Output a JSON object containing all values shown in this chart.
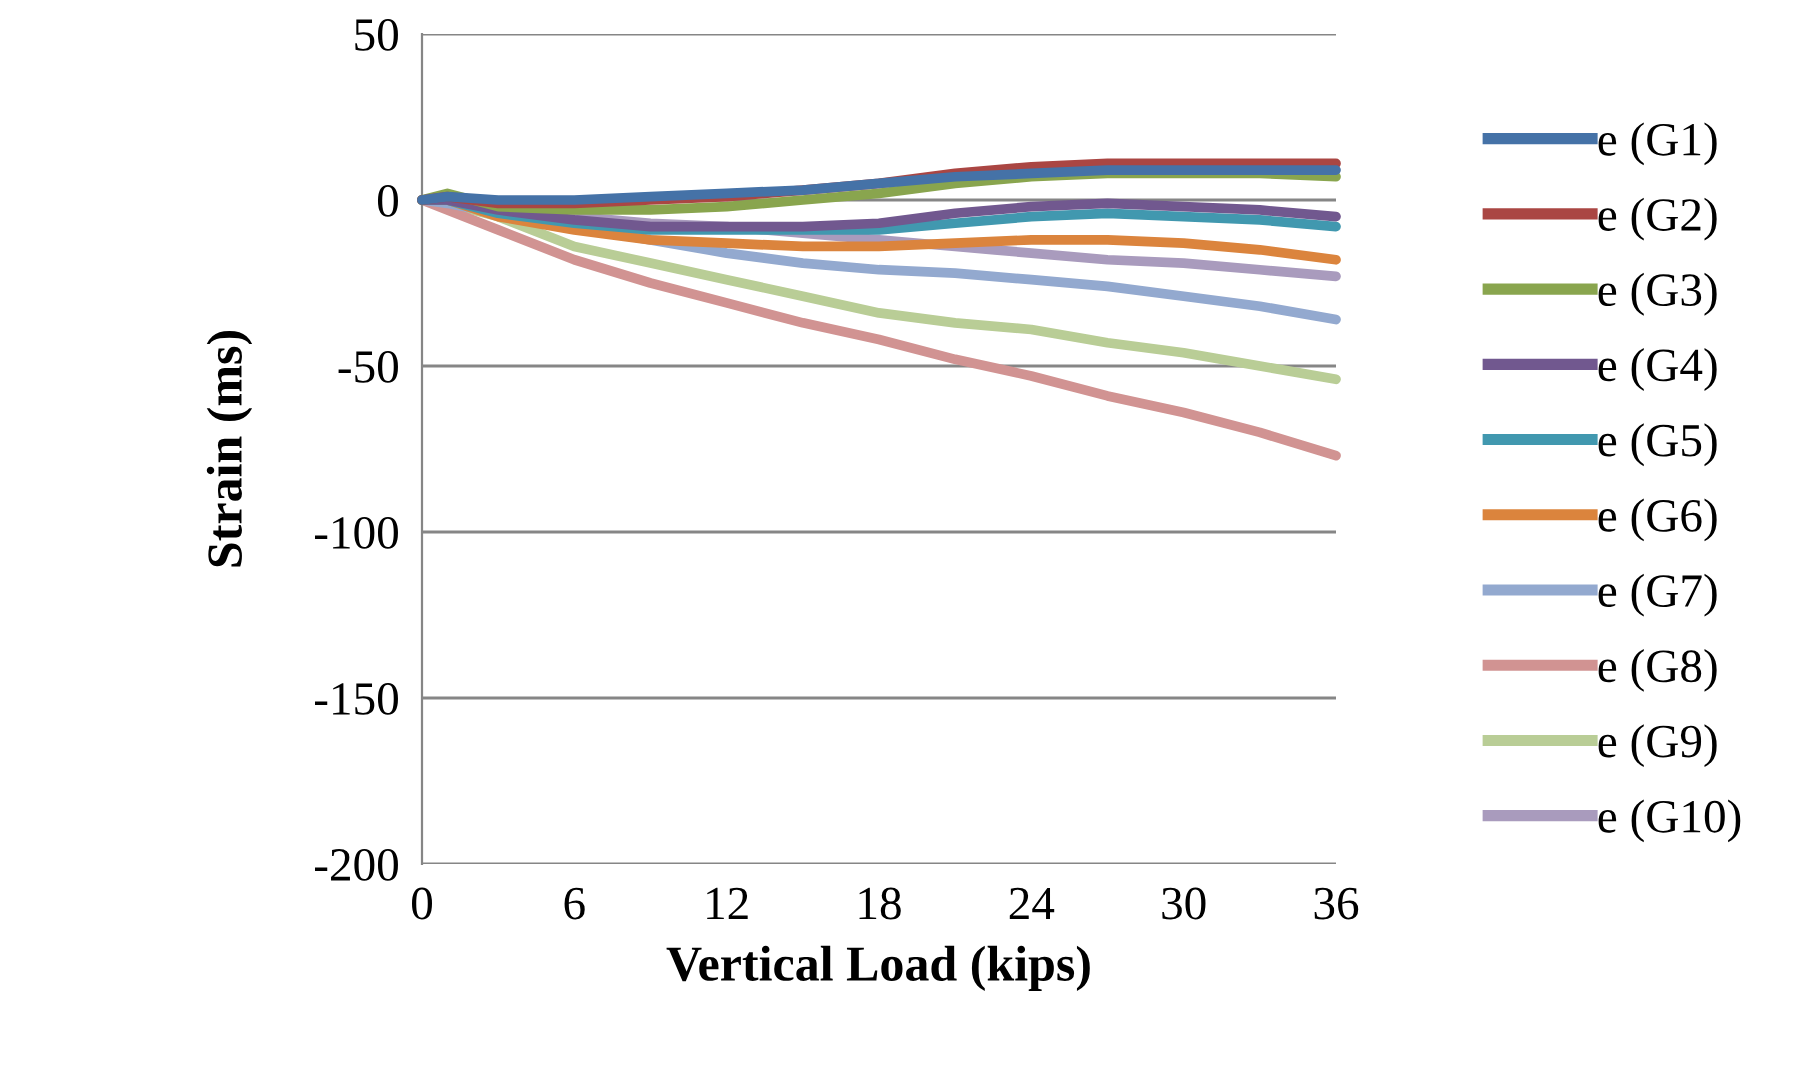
{
  "chart_data": {
    "type": "line",
    "xlabel": "Vertical Load (kips)",
    "ylabel": "Strain (ms)",
    "x": [
      0,
      1,
      3,
      6,
      9,
      12,
      15,
      18,
      21,
      24,
      27,
      30,
      33,
      36
    ],
    "xlim": [
      0,
      36
    ],
    "xticks": [
      0,
      6,
      12,
      18,
      24,
      30,
      36
    ],
    "ylim": [
      -200,
      50
    ],
    "yticks": [
      -200,
      -150,
      -100,
      -50,
      0,
      50
    ],
    "grid": "y",
    "legend": "right",
    "marker": "none",
    "line_style": "solid",
    "series": [
      {
        "name": "e (G1)",
        "color": "#4572a7",
        "values": [
          0,
          1,
          0,
          0,
          1,
          2,
          3,
          5,
          7,
          8,
          9,
          9,
          9,
          9
        ]
      },
      {
        "name": "e (G2)",
        "color": "#aa4643",
        "values": [
          0,
          1,
          -1,
          -1,
          0,
          1,
          3,
          5,
          8,
          10,
          11,
          11,
          11,
          11
        ]
      },
      {
        "name": "e (G3)",
        "color": "#89a54e",
        "values": [
          0,
          2,
          -2,
          -3,
          -3,
          -2,
          0,
          2,
          5,
          7,
          8,
          8,
          8,
          7
        ]
      },
      {
        "name": "e (G4)",
        "color": "#71588f",
        "values": [
          0,
          0,
          -3,
          -6,
          -8,
          -8,
          -8,
          -7,
          -4,
          -2,
          -1,
          -2,
          -3,
          -5
        ]
      },
      {
        "name": "e (G5)",
        "color": "#4198af",
        "values": [
          0,
          0,
          -4,
          -7,
          -9,
          -9,
          -9,
          -9,
          -7,
          -5,
          -4,
          -5,
          -6,
          -8
        ]
      },
      {
        "name": "e (G6)",
        "color": "#db843d",
        "values": [
          0,
          0,
          -5,
          -9,
          -12,
          -13,
          -14,
          -14,
          -13,
          -12,
          -12,
          -13,
          -15,
          -18
        ]
      },
      {
        "name": "e (G7)",
        "color": "#93a9cf",
        "values": [
          0,
          -1,
          -4,
          -8,
          -12,
          -16,
          -19,
          -21,
          -22,
          -24,
          -26,
          -29,
          -32,
          -36
        ]
      },
      {
        "name": "e (G8)",
        "color": "#d19392",
        "values": [
          0,
          -3,
          -9,
          -18,
          -25,
          -31,
          -37,
          -42,
          -48,
          -53,
          -59,
          -64,
          -70,
          -77
        ]
      },
      {
        "name": "e (G9)",
        "color": "#b9cd96",
        "values": [
          0,
          -1,
          -5,
          -14,
          -19,
          -24,
          -29,
          -34,
          -37,
          -39,
          -43,
          -46,
          -50,
          -54
        ]
      },
      {
        "name": "e (G10)",
        "color": "#a99bbd",
        "values": [
          0,
          -1,
          -3,
          -5,
          -7,
          -8,
          -10,
          -12,
          -14,
          -16,
          -18,
          -19,
          -21,
          -23
        ]
      }
    ]
  }
}
